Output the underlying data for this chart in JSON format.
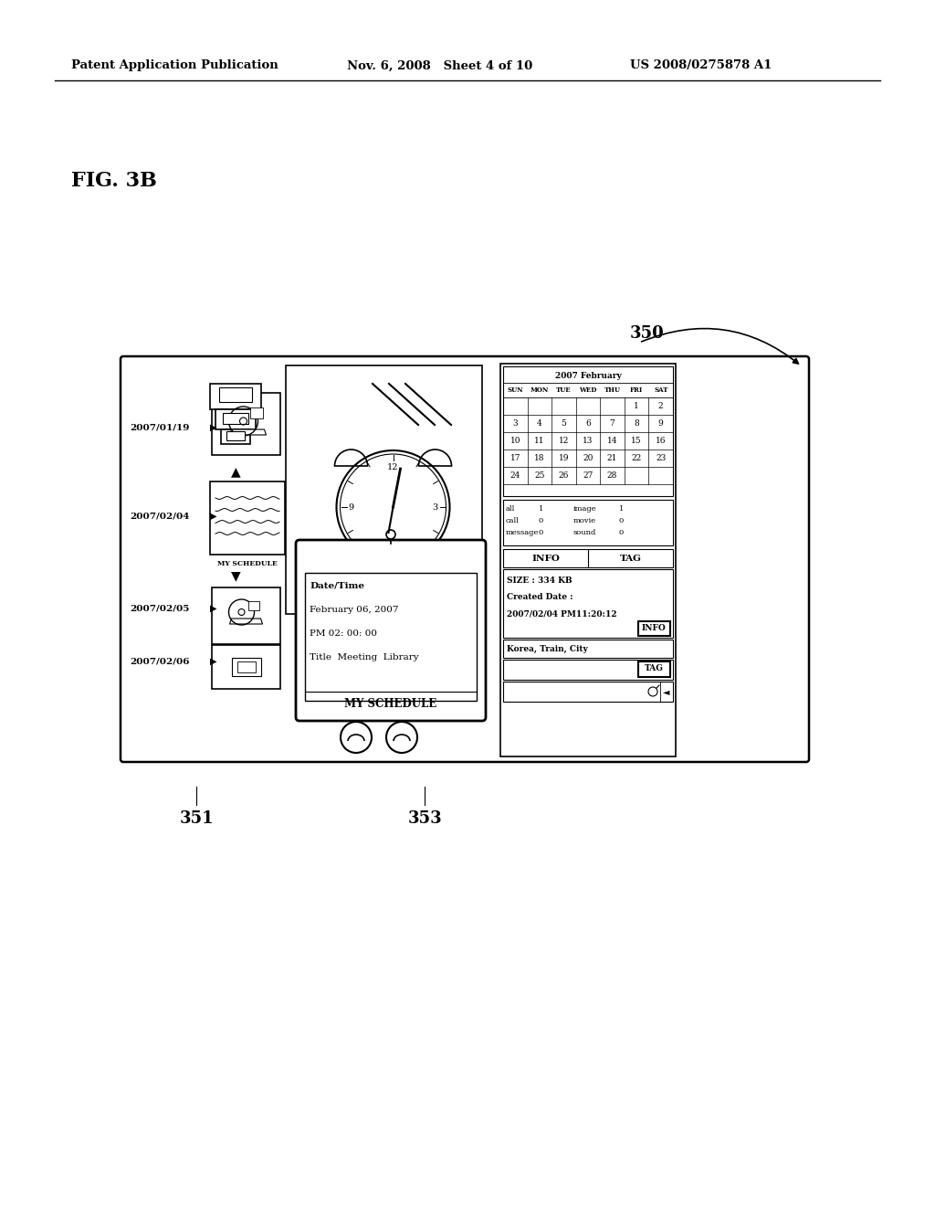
{
  "bg_color": "#ffffff",
  "header_left": "Patent Application Publication",
  "header_mid": "Nov. 6, 2008   Sheet 4 of 10",
  "header_right": "US 2008/0275878 A1",
  "fig_label": "FIG. 3B",
  "label_350": "350",
  "label_351": "351",
  "label_353": "353",
  "calendar_title": "2007 February",
  "cal_headers": [
    "SUN",
    "MON",
    "TUE",
    "WED",
    "THU",
    "FRI",
    "SAT"
  ],
  "cal_rows": [
    [
      "",
      "",
      "",
      "",
      "",
      "1",
      "2"
    ],
    [
      "3",
      "4",
      "5",
      "6",
      "7",
      "8",
      "9"
    ],
    [
      "10",
      "11",
      "12",
      "13",
      "14",
      "15",
      "16"
    ],
    [
      "17",
      "18",
      "19",
      "20",
      "21",
      "22",
      "23"
    ],
    [
      "24",
      "25",
      "26",
      "27",
      "28",
      "",
      ""
    ]
  ],
  "stats_data": [
    [
      "all",
      "1",
      "image",
      "1"
    ],
    [
      "call",
      "0",
      "movie",
      "0"
    ],
    [
      "message",
      "0",
      "sound",
      "0"
    ]
  ],
  "info_lines": [
    "SIZE : 334 KB",
    "Created Date :",
    "2007/02/04 PM11:20:12"
  ],
  "tag_text": "Korea, Train, City",
  "schedule_popup_title": "MY SCHEDULE",
  "schedule_popup_lines": [
    "Date/Time",
    "February 06, 2007",
    "PM 02: 00: 00",
    "Title  Meeting  Library"
  ],
  "timeline": [
    {
      "date": "2007/01/19",
      "type": "disc"
    },
    {
      "date": "2007/02/04",
      "type": "schedule",
      "label": "MY SCHEDULE"
    },
    {
      "date": "2007/02/05",
      "type": "disc"
    },
    {
      "date": "2007/02/06",
      "type": "box"
    }
  ]
}
